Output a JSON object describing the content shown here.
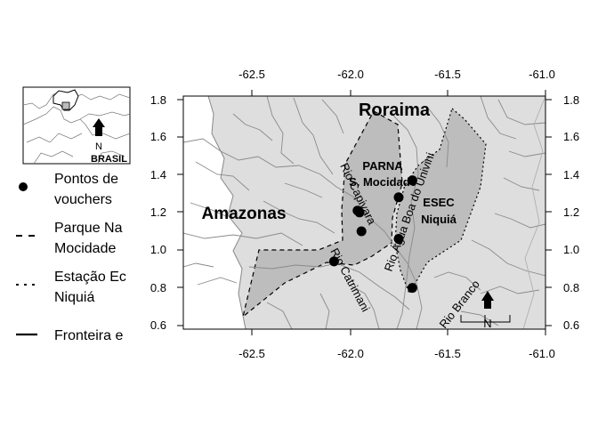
{
  "map": {
    "axes": {
      "x_ticks": [
        "-62.5",
        "-62.0",
        "-61.5",
        "-61.0"
      ],
      "y_ticks": [
        "0.6",
        "0.8",
        "1.0",
        "1.2",
        "1.4",
        "1.6",
        "1.8"
      ]
    },
    "regions": {
      "roraima": "Roraima",
      "amazonas": "Amazonas"
    },
    "areas": {
      "parna_line1": "PARNA",
      "parna_line2": "S. Mocidade",
      "esec_line1": "ESEC",
      "esec_line2": "Niquiá"
    },
    "rivers": {
      "capivara": "Rio Capivara",
      "agua_boa": "Rio Água Boa do Univini",
      "catrimani": "Rio Catrimani",
      "branco": "Rio Branco"
    },
    "north_label": "N",
    "points_data": [
      {
        "lon": -61.68,
        "lat": 1.37
      },
      {
        "lon": -61.75,
        "lat": 1.28
      },
      {
        "lon": -61.96,
        "lat": 1.21
      },
      {
        "lon": -61.95,
        "lat": 1.2
      },
      {
        "lon": -61.94,
        "lat": 1.1
      },
      {
        "lon": -61.75,
        "lat": 1.06
      },
      {
        "lon": -62.08,
        "lat": 0.94
      },
      {
        "lon": -61.68,
        "lat": 0.8
      }
    ]
  },
  "inset": {
    "north_label": "N",
    "country_label": "BRASIL"
  },
  "legend": {
    "points_line1": "Pontos de",
    "points_line2": "vouchers",
    "parque_line1": "Parque Na",
    "parque_line2": "Mocidade",
    "estacao_line1": "Estação Ec",
    "estacao_line2": "Niquiá",
    "fronteira": "Fronteira e"
  }
}
